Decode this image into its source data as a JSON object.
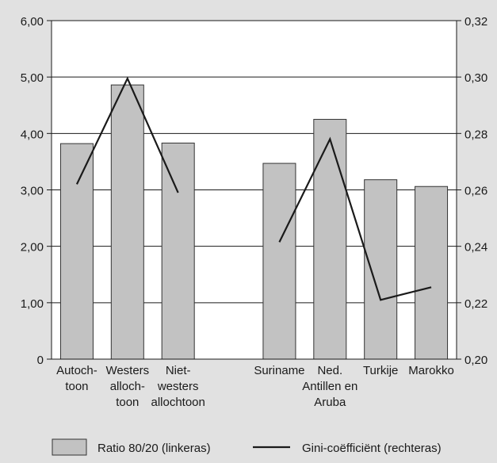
{
  "chart_data": {
    "type": "bar",
    "categories": [
      [
        "Autoch-",
        "toon"
      ],
      [
        "Westers",
        "alloch-",
        "toon"
      ],
      [
        "Niet-",
        "westers",
        "allochtoon"
      ],
      [],
      [
        "Suriname"
      ],
      [
        "Ned.",
        "Antillen en",
        "Aruba"
      ],
      [
        "Turkije"
      ],
      [
        "Marokko"
      ]
    ],
    "series": [
      {
        "name": "Ratio 80/20 (linkeras)",
        "type": "bar",
        "axis": "left",
        "values": [
          3.82,
          4.86,
          3.83,
          null,
          3.47,
          4.25,
          3.18,
          3.06
        ]
      },
      {
        "name": "Gini-coëfficiënt (rechteras)",
        "type": "line",
        "axis": "right",
        "values": [
          0.262,
          0.2995,
          0.259,
          null,
          0.2415,
          0.278,
          0.221,
          0.2255
        ]
      }
    ],
    "y_left": {
      "min": 0,
      "max": 6,
      "ticks": [
        "0",
        "1,00",
        "2,00",
        "3,00",
        "4,00",
        "5,00",
        "6,00"
      ]
    },
    "y_right": {
      "min": 0.2,
      "max": 0.32,
      "ticks": [
        "0,20",
        "0,22",
        "0,24",
        "0,26",
        "0,28",
        "0,30",
        "0,32"
      ]
    },
    "grid": true,
    "legend_position": "bottom",
    "colors": {
      "bar": "#c2c2c2",
      "bar_stroke": "#333333",
      "line": "#1a1a1a",
      "plot_bg": "#ffffff",
      "page_bg": "#e1e1e1",
      "grid": "#1a1a1a"
    }
  }
}
